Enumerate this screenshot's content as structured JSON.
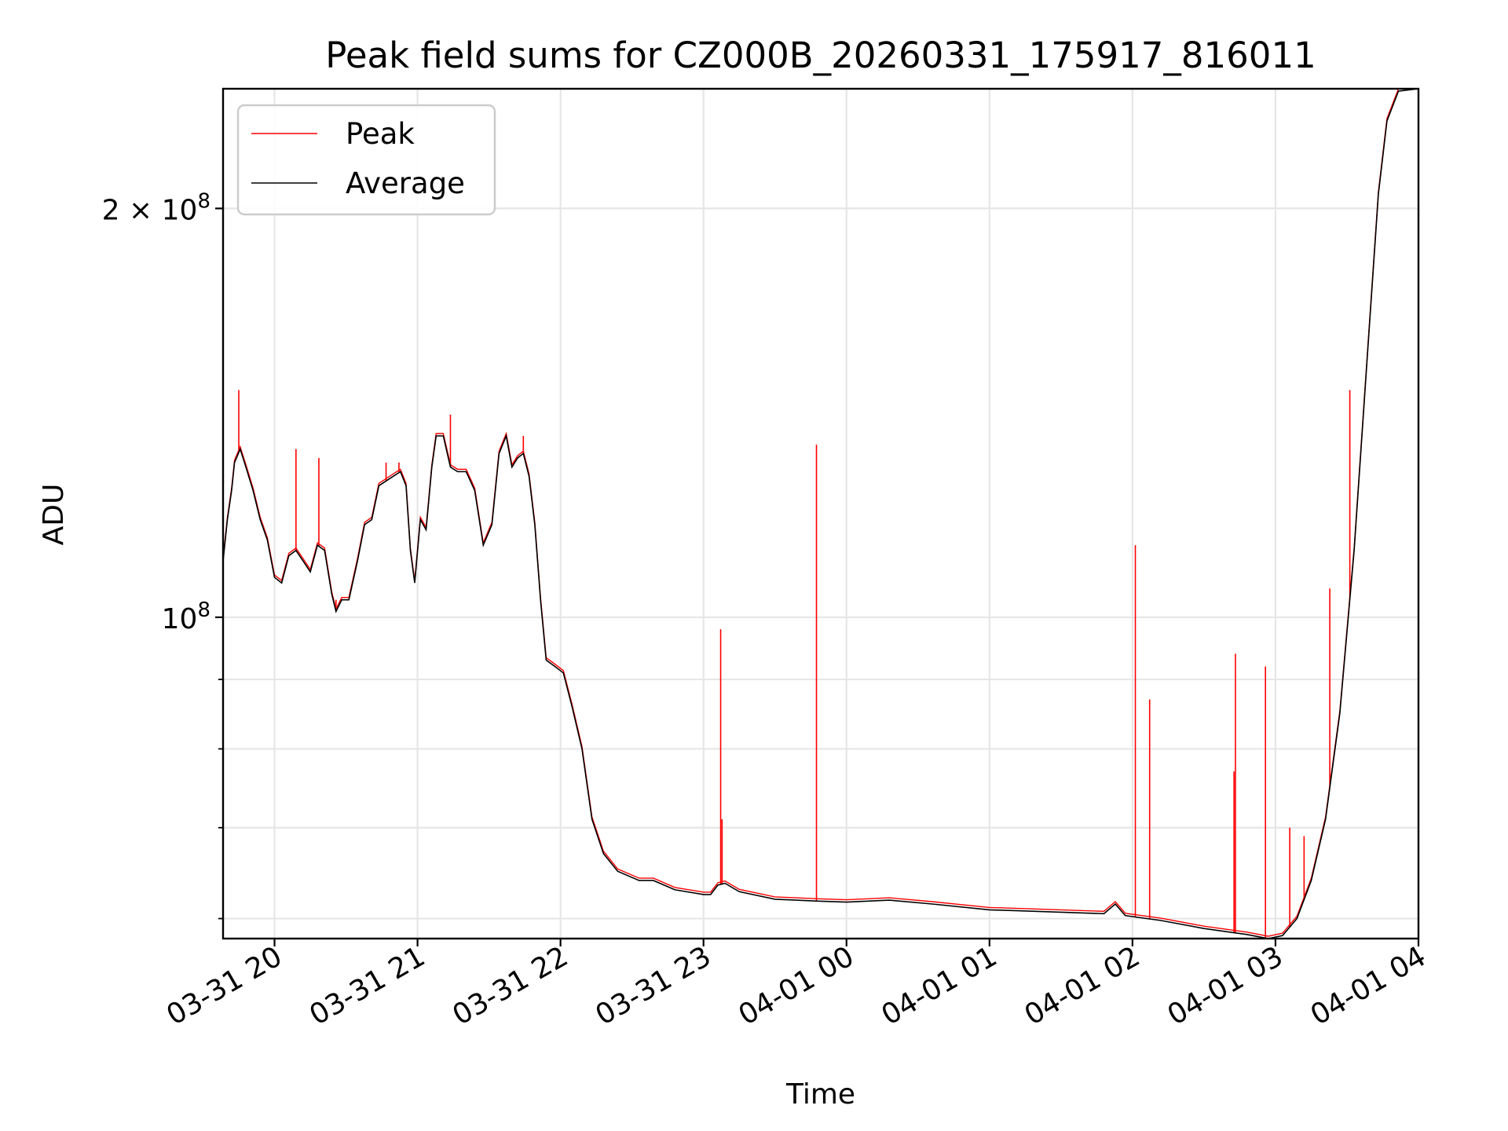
{
  "chart_data": {
    "type": "line",
    "title": "Peak field sums for CZ000B_20260331_175917_816011",
    "xlabel": "Time",
    "ylabel": "ADU",
    "yscale": "log",
    "grid": true,
    "legend_position": "upper-left",
    "xlim_hours": [
      -0.36,
      8.0
    ],
    "ylim": [
      58000000,
      245000000
    ],
    "x_ticks": [
      {
        "hour": 0,
        "label": "03-31 20"
      },
      {
        "hour": 1,
        "label": "03-31 21"
      },
      {
        "hour": 2,
        "label": "03-31 22"
      },
      {
        "hour": 3,
        "label": "03-31 23"
      },
      {
        "hour": 4,
        "label": "04-01 00"
      },
      {
        "hour": 5,
        "label": "04-01 01"
      },
      {
        "hour": 6,
        "label": "04-01 02"
      },
      {
        "hour": 7,
        "label": "04-01 03"
      },
      {
        "hour": 8,
        "label": "04-01 04"
      }
    ],
    "y_major_ticks": [
      {
        "value": 100000000,
        "mantissa": "",
        "base": "10",
        "exponent": "8"
      },
      {
        "value": 200000000,
        "mantissa": "2 × ",
        "base": "10",
        "exponent": "8"
      }
    ],
    "y_minor_ticks": [
      60000000,
      70000000,
      80000000,
      90000000
    ],
    "series": [
      {
        "name": "Peak",
        "color": "#ff0000",
        "spikes": [
          {
            "hour": -0.25,
            "value": 147000000
          },
          {
            "hour": 0.15,
            "value": 133000000
          },
          {
            "hour": 0.31,
            "value": 131000000
          },
          {
            "hour": 0.43,
            "value": 103000000
          },
          {
            "hour": 0.78,
            "value": 130000000
          },
          {
            "hour": 0.87,
            "value": 130000000
          },
          {
            "hour": 1.23,
            "value": 141000000
          },
          {
            "hour": 1.74,
            "value": 136000000
          },
          {
            "hour": 3.12,
            "value": 98000000
          },
          {
            "hour": 3.13,
            "value": 71000000
          },
          {
            "hour": 3.79,
            "value": 134000000
          },
          {
            "hour": 6.02,
            "value": 113000000
          },
          {
            "hour": 6.12,
            "value": 87000000
          },
          {
            "hour": 6.72,
            "value": 94000000
          },
          {
            "hour": 6.71,
            "value": 77000000
          },
          {
            "hour": 6.93,
            "value": 92000000
          },
          {
            "hour": 7.1,
            "value": 70000000
          },
          {
            "hour": 7.2,
            "value": 69000000
          },
          {
            "hour": 7.38,
            "value": 105000000
          },
          {
            "hour": 7.52,
            "value": 147000000
          }
        ]
      },
      {
        "name": "Average",
        "color": "#000000",
        "points": [
          [
            -0.36,
            110000000
          ],
          [
            -0.33,
            118000000
          ],
          [
            -0.3,
            124000000
          ],
          [
            -0.28,
            130000000
          ],
          [
            -0.24,
            133000000
          ],
          [
            -0.2,
            129000000
          ],
          [
            -0.15,
            124000000
          ],
          [
            -0.1,
            118000000
          ],
          [
            -0.05,
            114000000
          ],
          [
            0.0,
            107000000
          ],
          [
            0.05,
            106000000
          ],
          [
            0.1,
            111000000
          ],
          [
            0.15,
            112000000
          ],
          [
            0.2,
            110000000
          ],
          [
            0.25,
            108000000
          ],
          [
            0.3,
            113000000
          ],
          [
            0.35,
            112000000
          ],
          [
            0.4,
            104000000
          ],
          [
            0.43,
            101000000
          ],
          [
            0.47,
            103000000
          ],
          [
            0.52,
            103000000
          ],
          [
            0.58,
            110000000
          ],
          [
            0.63,
            117000000
          ],
          [
            0.68,
            118000000
          ],
          [
            0.73,
            125000000
          ],
          [
            0.78,
            126000000
          ],
          [
            0.83,
            127000000
          ],
          [
            0.88,
            128000000
          ],
          [
            0.92,
            125000000
          ],
          [
            0.95,
            112000000
          ],
          [
            0.98,
            106000000
          ],
          [
            1.02,
            118000000
          ],
          [
            1.06,
            116000000
          ],
          [
            1.1,
            129000000
          ],
          [
            1.13,
            136000000
          ],
          [
            1.18,
            136000000
          ],
          [
            1.23,
            129000000
          ],
          [
            1.28,
            128000000
          ],
          [
            1.34,
            128000000
          ],
          [
            1.4,
            124000000
          ],
          [
            1.46,
            113000000
          ],
          [
            1.52,
            117000000
          ],
          [
            1.57,
            132000000
          ],
          [
            1.62,
            136000000
          ],
          [
            1.66,
            129000000
          ],
          [
            1.7,
            131000000
          ],
          [
            1.74,
            132000000
          ],
          [
            1.78,
            127000000
          ],
          [
            1.82,
            117000000
          ],
          [
            1.86,
            103000000
          ],
          [
            1.9,
            93000000
          ],
          [
            1.96,
            92000000
          ],
          [
            2.02,
            91000000
          ],
          [
            2.08,
            86000000
          ],
          [
            2.15,
            80000000
          ],
          [
            2.22,
            71000000
          ],
          [
            2.3,
            67000000
          ],
          [
            2.4,
            65000000
          ],
          [
            2.55,
            64000000
          ],
          [
            2.65,
            64000000
          ],
          [
            2.8,
            63000000
          ],
          [
            3.0,
            62500000
          ],
          [
            3.05,
            62500000
          ],
          [
            3.1,
            63500000
          ],
          [
            3.15,
            63700000
          ],
          [
            3.25,
            62800000
          ],
          [
            3.5,
            62000000
          ],
          [
            3.8,
            61800000
          ],
          [
            4.0,
            61700000
          ],
          [
            4.3,
            61900000
          ],
          [
            4.6,
            61500000
          ],
          [
            5.0,
            60900000
          ],
          [
            5.4,
            60700000
          ],
          [
            5.8,
            60500000
          ],
          [
            5.88,
            61500000
          ],
          [
            5.95,
            60300000
          ],
          [
            6.2,
            59800000
          ],
          [
            6.5,
            59000000
          ],
          [
            6.8,
            58400000
          ],
          [
            6.95,
            58000000
          ],
          [
            7.05,
            58300000
          ],
          [
            7.15,
            60000000
          ],
          [
            7.25,
            64000000
          ],
          [
            7.35,
            71000000
          ],
          [
            7.45,
            85000000
          ],
          [
            7.55,
            112000000
          ],
          [
            7.65,
            160000000
          ],
          [
            7.72,
            205000000
          ],
          [
            7.78,
            232000000
          ],
          [
            7.86,
            244000000
          ],
          [
            8.0,
            245000000
          ]
        ]
      }
    ],
    "legend": [
      {
        "name": "Peak",
        "color": "#ff0000"
      },
      {
        "name": "Average",
        "color": "#000000"
      }
    ]
  }
}
